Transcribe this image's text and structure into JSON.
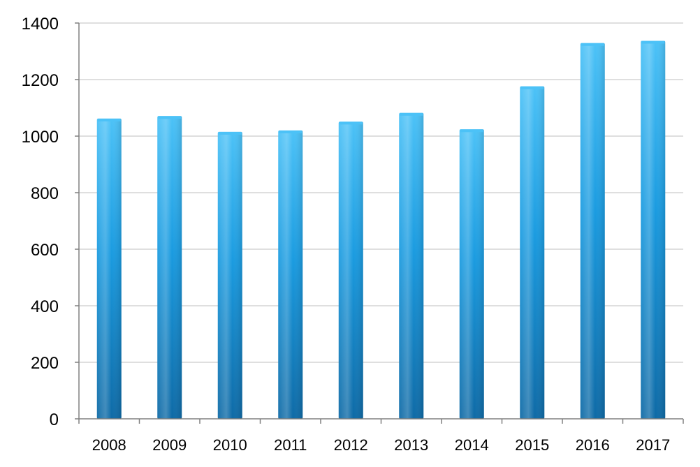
{
  "chart_data": {
    "type": "bar",
    "title": "",
    "xlabel": "",
    "ylabel": "",
    "categories": [
      "2008",
      "2009",
      "2010",
      "2011",
      "2012",
      "2013",
      "2014",
      "2015",
      "2016",
      "2017"
    ],
    "values": [
      1062,
      1071,
      1015,
      1020,
      1051,
      1082,
      1024,
      1176,
      1329,
      1337
    ],
    "ylim": [
      0,
      1400
    ],
    "yticks": [
      "0",
      "200",
      "400",
      "600",
      "800",
      "1000",
      "1200",
      "1400"
    ],
    "grid": true,
    "legend": "none",
    "colors": {
      "bar_top": "#4cc2f7",
      "bar_mid": "#1a9be0",
      "bar_bottom": "#0e6aa6",
      "grid": "#bfbfbf",
      "axis": "#808080"
    }
  }
}
